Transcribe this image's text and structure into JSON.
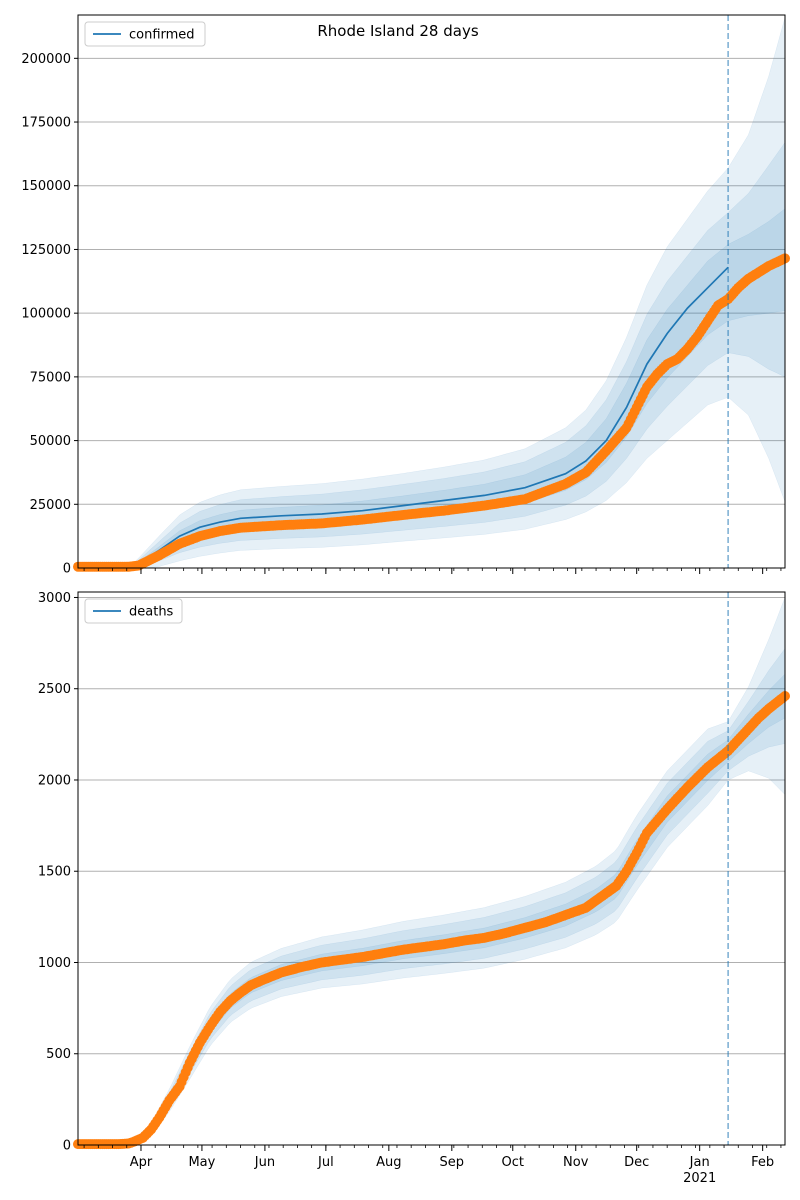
{
  "title": "Rhode Island 28 days",
  "colors": {
    "model": "#1f77b4",
    "observed": "#ff7f0e",
    "band": "#1f77b4",
    "cutoff": "#1f77b4",
    "grid": "#b0b0b0"
  },
  "x_axis": {
    "month_labels": [
      "Apr",
      "May",
      "Jun",
      "Jul",
      "Aug",
      "Sep",
      "Oct",
      "Nov",
      "Dec",
      "Jan",
      "Feb"
    ],
    "month_days": [
      31,
      61,
      92,
      122,
      153,
      184,
      214,
      245,
      275,
      306,
      337
    ],
    "year_label": "2021",
    "range_days": [
      0,
      348
    ],
    "cutoff_day": 320
  },
  "chart_data": [
    {
      "type": "line",
      "legend": "confirmed",
      "legend_position": "top-left",
      "grid": "y",
      "ylim": [
        0,
        217000
      ],
      "yticks": [
        0,
        25000,
        50000,
        75000,
        100000,
        125000,
        150000,
        175000,
        200000
      ],
      "ytick_labels": [
        "0",
        "25000",
        "50000",
        "75000",
        "100000",
        "125000",
        "150000",
        "175000",
        "200000"
      ],
      "model_days": [
        0,
        25,
        30,
        40,
        50,
        60,
        70,
        80,
        100,
        120,
        140,
        160,
        180,
        200,
        220,
        240,
        250,
        260,
        270,
        280,
        290,
        300,
        310,
        320
      ],
      "model": [
        0,
        0,
        2000,
        7000,
        12500,
        16000,
        18000,
        19500,
        20500,
        21200,
        22500,
        24500,
        26500,
        28500,
        31500,
        37000,
        42000,
        50000,
        63000,
        80000,
        92000,
        102000,
        110000,
        118000
      ],
      "observed_days": [
        0,
        25,
        30,
        40,
        50,
        60,
        70,
        80,
        100,
        120,
        140,
        160,
        180,
        200,
        220,
        240,
        250,
        260,
        270,
        275,
        280,
        285,
        290,
        295,
        300,
        305,
        310,
        315,
        320,
        325,
        330,
        335,
        340,
        348
      ],
      "observed": [
        500,
        500,
        1000,
        5000,
        9500,
        12500,
        14500,
        15800,
        16800,
        17500,
        19000,
        20800,
        22500,
        24500,
        27000,
        33000,
        37500,
        46000,
        55000,
        63000,
        71000,
        76000,
        80000,
        82000,
        86000,
        91000,
        97000,
        103000,
        105500,
        110000,
        113500,
        116000,
        118500,
        121500
      ],
      "band_days": [
        0,
        25,
        30,
        40,
        50,
        60,
        70,
        80,
        100,
        120,
        140,
        160,
        180,
        200,
        220,
        240,
        250,
        260,
        270,
        280,
        290,
        300,
        310,
        320,
        330,
        340,
        348
      ],
      "band_mid": [
        300,
        300,
        1800,
        6600,
        11800,
        15200,
        17300,
        18800,
        19800,
        20600,
        22000,
        23800,
        25700,
        27800,
        31000,
        37000,
        42000,
        50000,
        62000,
        77000,
        88000,
        97000,
        106000,
        112000,
        115000,
        118000,
        121000
      ],
      "band_offsets": [
        [
          0,
          0,
          700,
          1800,
          2800,
          3400,
          3700,
          3900,
          4000,
          4100,
          4300,
          4500,
          4800,
          5100,
          5600,
          6500,
          7300,
          8600,
          10500,
          12500,
          13500,
          14000,
          14500,
          15000,
          16000,
          18000,
          20000
        ],
        [
          0,
          0,
          1400,
          3800,
          5800,
          7000,
          7600,
          8000,
          8200,
          8400,
          8700,
          9000,
          9400,
          9900,
          10700,
          12300,
          13800,
          16000,
          19000,
          22500,
          24500,
          25500,
          26500,
          27500,
          32000,
          40000,
          46000
        ],
        [
          0,
          0,
          2200,
          6000,
          9000,
          10600,
          11400,
          11900,
          12200,
          12500,
          12900,
          13300,
          13900,
          14600,
          15800,
          18000,
          20000,
          23500,
          28500,
          34000,
          38000,
          40000,
          42000,
          45000,
          55000,
          75000,
          95000
        ]
      ]
    },
    {
      "type": "line",
      "legend": "deaths",
      "legend_position": "top-left",
      "grid": "y",
      "ylim": [
        0,
        3030
      ],
      "yticks": [
        0,
        500,
        1000,
        1500,
        2000,
        2500,
        3000
      ],
      "ytick_labels": [
        "0",
        "500",
        "1000",
        "1500",
        "2000",
        "2500",
        "3000"
      ],
      "observed_days": [
        0,
        20,
        25,
        28,
        32,
        36,
        40,
        45,
        50,
        55,
        60,
        65,
        70,
        75,
        80,
        85,
        90,
        100,
        110,
        120,
        130,
        140,
        150,
        160,
        170,
        180,
        190,
        200,
        210,
        220,
        230,
        240,
        250,
        255,
        260,
        265,
        270,
        275,
        280,
        290,
        300,
        310,
        320,
        325,
        330,
        335,
        340,
        348
      ],
      "observed": [
        5,
        5,
        8,
        20,
        40,
        85,
        150,
        245,
        320,
        450,
        560,
        650,
        730,
        790,
        835,
        875,
        900,
        945,
        975,
        1000,
        1015,
        1030,
        1050,
        1070,
        1085,
        1100,
        1120,
        1135,
        1160,
        1190,
        1220,
        1260,
        1300,
        1340,
        1380,
        1420,
        1500,
        1600,
        1710,
        1840,
        1960,
        2070,
        2160,
        2220,
        2280,
        2340,
        2390,
        2460
      ],
      "band_days": [
        0,
        20,
        28,
        36,
        45,
        55,
        65,
        75,
        85,
        100,
        120,
        140,
        160,
        180,
        200,
        220,
        240,
        255,
        265,
        275,
        290,
        310,
        320,
        330,
        340,
        348
      ],
      "band_mid": [
        5,
        5,
        20,
        85,
        245,
        450,
        650,
        790,
        875,
        945,
        1000,
        1030,
        1070,
        1100,
        1135,
        1190,
        1260,
        1340,
        1420,
        1600,
        1840,
        2070,
        2160,
        2280,
        2390,
        2460
      ],
      "band_offsets": [
        [
          0,
          0,
          4,
          10,
          20,
          30,
          35,
          40,
          42,
          44,
          46,
          48,
          50,
          52,
          54,
          56,
          60,
          62,
          66,
          70,
          72,
          72,
          60,
          80,
          100,
          120
        ],
        [
          0,
          0,
          8,
          22,
          40,
          60,
          72,
          80,
          86,
          90,
          95,
          100,
          104,
          108,
          112,
          116,
          122,
          128,
          134,
          140,
          142,
          142,
          110,
          150,
          210,
          260
        ],
        [
          0,
          0,
          14,
          36,
          62,
          90,
          106,
          118,
          126,
          132,
          140,
          148,
          155,
          160,
          166,
          172,
          180,
          188,
          196,
          206,
          210,
          210,
          160,
          230,
          380,
          540
        ]
      ]
    }
  ]
}
